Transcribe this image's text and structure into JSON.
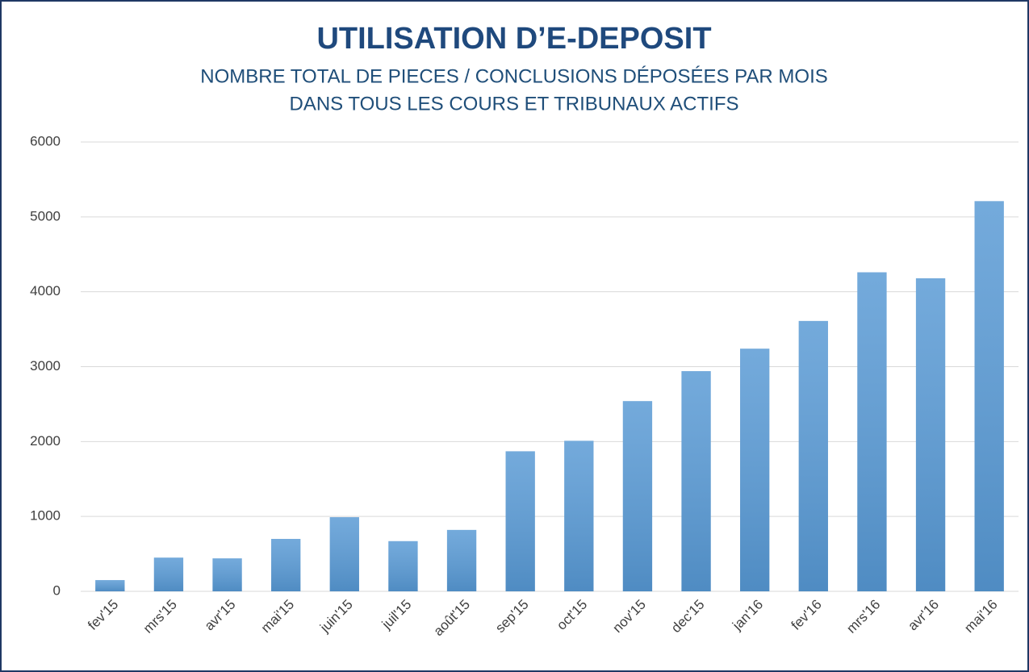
{
  "chart_data": {
    "type": "bar",
    "title": "UTILISATION D’E-DEPOSIT",
    "subtitle": [
      "NOMBRE TOTAL DE PIECES / CONCLUSIONS DÉPOSÉES PAR MOIS",
      "DANS TOUS LES COURS ET TRIBUNAUX ACTIFS"
    ],
    "categories": [
      "fev'15",
      "mrs'15",
      "avr'15",
      "mai'15",
      "juin'15",
      "juil'15",
      "août'15",
      "sep'15",
      "oct'15",
      "nov'15",
      "dec'15",
      "jan'16",
      "fev'16",
      "mrs'16",
      "avr'16",
      "mai'16"
    ],
    "values": [
      150,
      450,
      440,
      700,
      990,
      670,
      820,
      1870,
      2010,
      2540,
      2940,
      3240,
      3610,
      4260,
      4180,
      5210
    ],
    "color": "#5b9bd5",
    "ylim": [
      0,
      6000
    ],
    "yticks": [
      0,
      1000,
      2000,
      3000,
      4000,
      5000,
      6000
    ],
    "grid": true
  }
}
